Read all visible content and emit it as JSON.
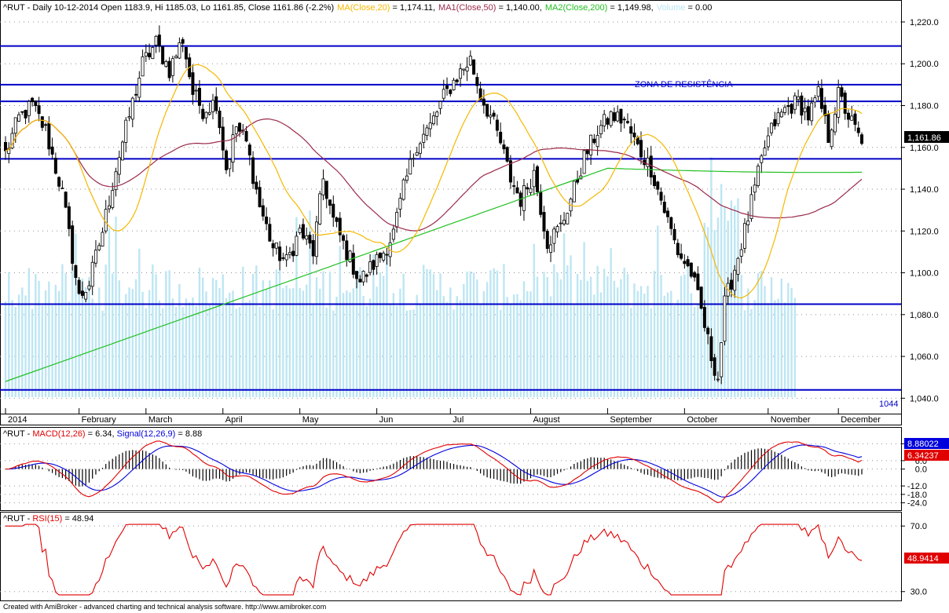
{
  "header": {
    "symbol_info": "^RUT - Daily 10-12-2014 Open 1183.9, Hi 1185.03, Lo 1161.85, Close 1161.86 (-2.2%)",
    "ma20_label": "MA(Close,20)",
    "ma20_value": " = 1,174.11,",
    "ma50_label": "MA1(Close,50)",
    "ma50_value": " = 1,140.00,",
    "ma200_label": "MA2(Close,200)",
    "ma200_value": " = 1,149.98,",
    "volume_label": "Volume",
    "volume_value": " = 0.00"
  },
  "colors": {
    "candle": "#000000",
    "ma20": "#f5b800",
    "ma50": "#9b2a4a",
    "ma200": "#22c022",
    "volume": "#bde6f3",
    "hline": "#0000c8",
    "macd": "#e00000",
    "signal": "#0000dd",
    "rsi": "#e00000",
    "grid": "#909090"
  },
  "annotation": "ZONA DE RESISTÊNCIA",
  "low_label": "1044",
  "last_price_badge": "1,161.86",
  "footer": "Created with AmiBroker - advanced charting and technical analysis software. http://www.amibroker.com",
  "chart_data": [
    {
      "type": "candlestick",
      "panel": "price",
      "ylim": [
        1036,
        1226
      ],
      "y_ticks": [
        1040,
        1060,
        1080,
        1100,
        1120,
        1140,
        1160,
        1180,
        1200,
        1220
      ],
      "y_tick_labels": [
        "1,040.0",
        "1,060.0",
        "1,080.0",
        "1,100.0",
        "1,120.0",
        "1,140.0",
        "1,160.0",
        "1,180.0",
        "1,200.0",
        "1,220.0"
      ],
      "x_labels": [
        "2014",
        "February",
        "March",
        "April",
        "May",
        "Jun",
        "Jul",
        "August",
        "September",
        "October",
        "November",
        "December"
      ],
      "trading_days": 237,
      "month_start_index": [
        0,
        20,
        39,
        60,
        81,
        102,
        123,
        145,
        166,
        187,
        210,
        230
      ],
      "horizontal_lines": [
        1208.5,
        1190,
        1182,
        1154.5,
        1085,
        1044
      ],
      "anchors": [
        [
          0,
          1157
        ],
        [
          4,
          1174
        ],
        [
          8,
          1180
        ],
        [
          12,
          1168
        ],
        [
          17,
          1138
        ],
        [
          22,
          1088
        ],
        [
          25,
          1095
        ],
        [
          29,
          1120
        ],
        [
          33,
          1150
        ],
        [
          37,
          1175
        ],
        [
          41,
          1200
        ],
        [
          45,
          1210
        ],
        [
          49,
          1197
        ],
        [
          53,
          1212
        ],
        [
          56,
          1186
        ],
        [
          59,
          1178
        ],
        [
          63,
          1182
        ],
        [
          66,
          1150
        ],
        [
          69,
          1170
        ],
        [
          72,
          1162
        ],
        [
          76,
          1132
        ],
        [
          80,
          1112
        ],
        [
          84,
          1105
        ],
        [
          88,
          1120
        ],
        [
          92,
          1110
        ],
        [
          95,
          1145
        ],
        [
          98,
          1125
        ],
        [
          102,
          1110
        ],
        [
          106,
          1096
        ],
        [
          109,
          1102
        ],
        [
          113,
          1110
        ],
        [
          116,
          1119
        ],
        [
          119,
          1140
        ],
        [
          123,
          1162
        ],
        [
          127,
          1170
        ],
        [
          131,
          1184
        ],
        [
          135,
          1194
        ],
        [
          139,
          1202
        ],
        [
          142,
          1185
        ],
        [
          145,
          1175
        ],
        [
          148,
          1162
        ],
        [
          151,
          1145
        ],
        [
          154,
          1135
        ],
        [
          158,
          1148
        ],
        [
          162,
          1115
        ],
        [
          166,
          1122
        ],
        [
          170,
          1140
        ],
        [
          173,
          1155
        ],
        [
          177,
          1168
        ],
        [
          181,
          1175
        ],
        [
          185,
          1173
        ],
        [
          189,
          1160
        ],
        [
          193,
          1150
        ],
        [
          197,
          1130
        ],
        [
          201,
          1110
        ],
        [
          205,
          1100
        ],
        [
          208,
          1082
        ],
        [
          211,
          1060
        ],
        [
          213,
          1050
        ],
        [
          215,
          1085
        ],
        [
          218,
          1102
        ],
        [
          221,
          1120
        ],
        [
          224,
          1140
        ],
        [
          227,
          1160
        ],
        [
          230,
          1172
        ],
        [
          233,
          1178
        ],
        [
          237,
          1182
        ],
        [
          240,
          1175
        ],
        [
          243,
          1185
        ],
        [
          246,
          1165
        ],
        [
          249,
          1185
        ],
        [
          252,
          1175
        ],
        [
          256,
          1162
        ]
      ],
      "series": [
        {
          "name": "MA(Close,20)",
          "last": 1174.11
        },
        {
          "name": "MA1(Close,50)",
          "last": 1140.0
        },
        {
          "name": "MA2(Close,200)",
          "last": 1149.98
        },
        {
          "name": "Volume",
          "last": 0.0
        }
      ],
      "last_close": 1161.86
    },
    {
      "type": "line",
      "panel": "macd",
      "title": "^RUT - MACD(12,26) = 6.34, Signal(12,26,9) = 8.88",
      "ylim": [
        -27,
        21
      ],
      "y_ticks": [
        18.0,
        6.0,
        0.0,
        -12.0,
        -18.0,
        -24.0
      ],
      "y_tick_labels": [
        "18.0",
        "6.0",
        "0.0",
        "-12.0",
        "-18.0",
        "-24.0"
      ],
      "series": [
        {
          "name": "MACD(12,26)",
          "last": 6.34
        },
        {
          "name": "Signal(12,26,9)",
          "last": 8.88
        }
      ],
      "badges": [
        "8.88022",
        "6.34237"
      ]
    },
    {
      "type": "line",
      "panel": "rsi",
      "title": "^RUT - RSI(15) = 48.94",
      "ylim": [
        27,
        72
      ],
      "y_ticks": [
        70.0,
        30.0
      ],
      "y_tick_labels": [
        "70.0",
        "30.0"
      ],
      "series": [
        {
          "name": "RSI(15)",
          "last": 48.94
        }
      ],
      "badge": "48.9414"
    }
  ]
}
